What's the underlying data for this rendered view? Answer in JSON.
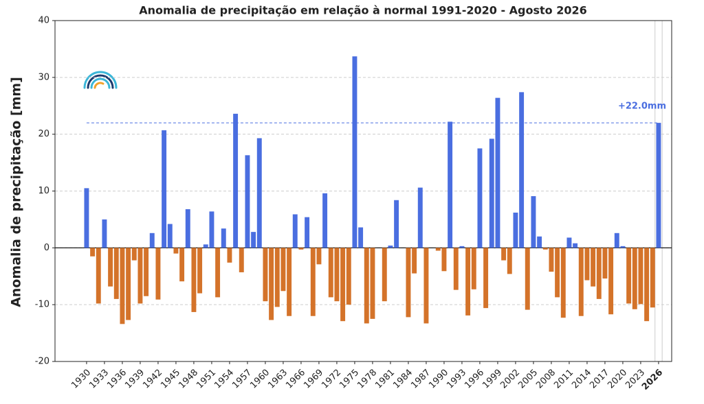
{
  "chart_data": {
    "type": "bar",
    "title": "Anomalia de precipitação em relação à normal 1991-2020 - Agosto 2026",
    "y_label": "Anomalia de precipitação [mm]",
    "x": [
      1930,
      1931,
      1932,
      1933,
      1934,
      1935,
      1936,
      1937,
      1938,
      1939,
      1940,
      1941,
      1942,
      1943,
      1944,
      1945,
      1946,
      1947,
      1948,
      1949,
      1950,
      1951,
      1952,
      1953,
      1954,
      1955,
      1956,
      1957,
      1958,
      1959,
      1960,
      1961,
      1962,
      1963,
      1964,
      1965,
      1966,
      1967,
      1968,
      1969,
      1970,
      1971,
      1972,
      1973,
      1974,
      1975,
      1976,
      1977,
      1978,
      1979,
      1980,
      1981,
      1982,
      1983,
      1984,
      1985,
      1986,
      1987,
      1988,
      1989,
      1990,
      1991,
      1992,
      1993,
      1994,
      1995,
      1996,
      1997,
      1998,
      1999,
      2000,
      2001,
      2002,
      2003,
      2004,
      2005,
      2006,
      2007,
      2008,
      2009,
      2010,
      2011,
      2012,
      2013,
      2014,
      2015,
      2016,
      2017,
      2018,
      2019,
      2020,
      2021,
      2022,
      2023,
      2024,
      2025,
      2026
    ],
    "values": [
      10.5,
      -1.5,
      -9.8,
      5.0,
      -6.8,
      -9.0,
      -13.4,
      -12.7,
      -2.2,
      -9.8,
      -8.5,
      2.6,
      -9.1,
      20.7,
      4.2,
      -1.0,
      -5.9,
      6.8,
      -11.3,
      -8.0,
      0.6,
      6.4,
      -8.7,
      3.4,
      -2.6,
      23.6,
      -4.3,
      16.3,
      2.8,
      19.3,
      -9.4,
      -12.7,
      -10.4,
      -7.6,
      -12.0,
      5.9,
      -0.3,
      5.4,
      -12.0,
      -2.9,
      9.6,
      -8.7,
      -9.4,
      -12.9,
      -10.0,
      33.7,
      3.6,
      -13.3,
      -12.5,
      0,
      -9.4,
      0.4,
      8.4,
      0,
      -12.2,
      -4.5,
      10.6,
      -13.3,
      0,
      -0.5,
      -4.1,
      22.2,
      -7.4,
      0.3,
      -11.9,
      -7.3,
      17.5,
      -10.6,
      19.2,
      26.4,
      -2.2,
      -4.6,
      6.2,
      27.4,
      -10.9,
      9.1,
      2.0,
      -0.3,
      -4.2,
      -8.7,
      -12.3,
      1.8,
      0.8,
      -12.0,
      -5.7,
      -6.8,
      -9.0,
      -5.4,
      -11.7,
      2.6,
      0.3,
      -9.8,
      -10.8,
      -9.9,
      -12.9,
      -10.5,
      22.0
    ],
    "positive_color": "#4a6ee0",
    "negative_color": "#d4732a",
    "xlim": [
      1924.7,
      2028.2
    ],
    "xticks": [
      1930,
      1933,
      1936,
      1939,
      1942,
      1945,
      1948,
      1951,
      1954,
      1957,
      1960,
      1963,
      1966,
      1969,
      1972,
      1975,
      1978,
      1981,
      1984,
      1987,
      1990,
      1993,
      1996,
      1999,
      2002,
      2005,
      2008,
      2011,
      2014,
      2017,
      2020,
      2023,
      2026
    ],
    "highlight": 2026,
    "ylim": [
      -20,
      40
    ],
    "yticks": [
      -20,
      -10,
      0,
      10,
      20,
      30,
      40
    ],
    "grid": true,
    "reference_line": 22.0,
    "reference_label": "+22.0mm"
  }
}
